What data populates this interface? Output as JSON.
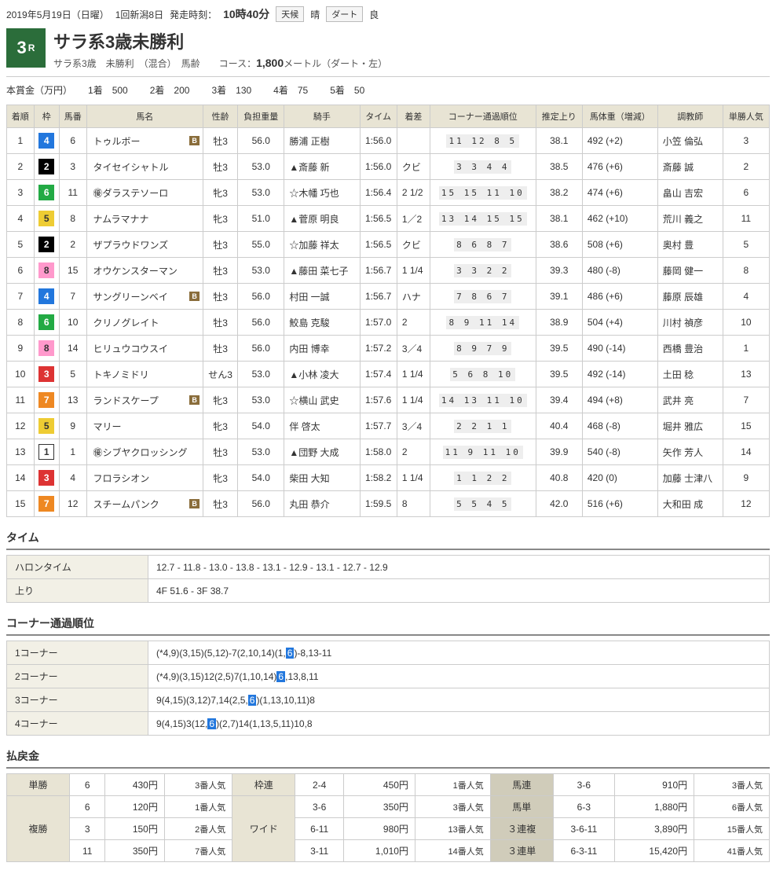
{
  "header": {
    "date": "2019年5月19日（日曜）",
    "meet": "1回新潟8日",
    "post_label": "発走時刻：",
    "post_time": "10時40分",
    "weather_label": "天候",
    "weather": "晴",
    "track_label": "ダート",
    "track": "良"
  },
  "race": {
    "number": "3",
    "number_suffix": "R",
    "title": "サラ系3歳未勝利",
    "sub": "サラ系3歳　未勝利　（混合）　馬齢　　コース：",
    "distance": "1,800",
    "distance_suffix": "メートル（ダート・左）"
  },
  "prize": {
    "label": "本賞金（万円）",
    "items": [
      [
        "1着",
        "500"
      ],
      [
        "2着",
        "200"
      ],
      [
        "3着",
        "130"
      ],
      [
        "4着",
        "75"
      ],
      [
        "5着",
        "50"
      ]
    ]
  },
  "columns": [
    "着順",
    "枠",
    "馬番",
    "馬名",
    "性齢",
    "負担重量",
    "騎手",
    "タイム",
    "着差",
    "コーナー通過順位",
    "推定上り",
    "馬体重（増減）",
    "調教師",
    "単勝人気"
  ],
  "waku_colors": {
    "1": "waku-1",
    "2": "waku-2",
    "3": "waku-3",
    "4": "waku-4",
    "5": "waku-5",
    "6": "waku-6",
    "7": "waku-7",
    "8": "waku-8"
  },
  "rows": [
    {
      "pos": "1",
      "waku": "4",
      "num": "6",
      "name": "トゥルボー",
      "b": true,
      "sex": "牡3",
      "wt": "56.0",
      "jockey": "勝浦 正樹",
      "time": "1:56.0",
      "margin": "",
      "corners": "11 12 8 5",
      "agari": "38.1",
      "body": "492 (+2)",
      "trainer": "小笠 倫弘",
      "pop": "3"
    },
    {
      "pos": "2",
      "waku": "2",
      "num": "3",
      "name": "タイセイシャトル",
      "b": false,
      "sex": "牡3",
      "wt": "53.0",
      "jockey": "▲斎藤 新",
      "time": "1:56.0",
      "margin": "クビ",
      "corners": "3 3 4 4",
      "agari": "38.5",
      "body": "476 (+6)",
      "trainer": "斎藤 誠",
      "pop": "2"
    },
    {
      "pos": "3",
      "waku": "6",
      "num": "11",
      "name": "㊝ダラステソーロ",
      "b": false,
      "sex": "牝3",
      "wt": "53.0",
      "jockey": "☆木幡 巧也",
      "time": "1:56.4",
      "margin": "2 1/2",
      "corners": "15 15 11 10",
      "agari": "38.2",
      "body": "474 (+6)",
      "trainer": "畠山 吉宏",
      "pop": "6"
    },
    {
      "pos": "4",
      "waku": "5",
      "num": "8",
      "name": "ナムラマナナ",
      "b": false,
      "sex": "牝3",
      "wt": "51.0",
      "jockey": "▲菅原 明良",
      "time": "1:56.5",
      "margin": "1／2",
      "corners": "13 14 15 15",
      "agari": "38.1",
      "body": "462 (+10)",
      "trainer": "荒川 義之",
      "pop": "11"
    },
    {
      "pos": "5",
      "waku": "2",
      "num": "2",
      "name": "ザプラウドワンズ",
      "b": false,
      "sex": "牡3",
      "wt": "55.0",
      "jockey": "☆加藤 祥太",
      "time": "1:56.5",
      "margin": "クビ",
      "corners": "8 6 8 7",
      "agari": "38.6",
      "body": "508 (+6)",
      "trainer": "奥村 豊",
      "pop": "5"
    },
    {
      "pos": "6",
      "waku": "8",
      "num": "15",
      "name": "オウケンスターマン",
      "b": false,
      "sex": "牡3",
      "wt": "53.0",
      "jockey": "▲藤田 菜七子",
      "time": "1:56.7",
      "margin": "1 1/4",
      "corners": "3 3 2 2",
      "agari": "39.3",
      "body": "480 (-8)",
      "trainer": "藤岡 健一",
      "pop": "8"
    },
    {
      "pos": "7",
      "waku": "4",
      "num": "7",
      "name": "サングリーンベイ",
      "b": true,
      "sex": "牡3",
      "wt": "56.0",
      "jockey": "村田 一誠",
      "time": "1:56.7",
      "margin": "ハナ",
      "corners": "7 8 6 7",
      "agari": "39.1",
      "body": "486 (+6)",
      "trainer": "藤原 辰雄",
      "pop": "4"
    },
    {
      "pos": "8",
      "waku": "6",
      "num": "10",
      "name": "クリノグレイト",
      "b": false,
      "sex": "牡3",
      "wt": "56.0",
      "jockey": "鮫島 克駿",
      "time": "1:57.0",
      "margin": "2",
      "corners": "8 9 11 14",
      "agari": "38.9",
      "body": "504 (+4)",
      "trainer": "川村 禎彦",
      "pop": "10"
    },
    {
      "pos": "9",
      "waku": "8",
      "num": "14",
      "name": "ヒリュウコウスイ",
      "b": false,
      "sex": "牡3",
      "wt": "56.0",
      "jockey": "内田 博幸",
      "time": "1:57.2",
      "margin": "3／4",
      "corners": "8 9 7 9",
      "agari": "39.5",
      "body": "490 (-14)",
      "trainer": "西橋 豊治",
      "pop": "1"
    },
    {
      "pos": "10",
      "waku": "3",
      "num": "5",
      "name": "トキノミドリ",
      "b": false,
      "sex": "せん3",
      "wt": "53.0",
      "jockey": "▲小林 凌大",
      "time": "1:57.4",
      "margin": "1 1/4",
      "corners": "5 6 8 10",
      "agari": "39.5",
      "body": "492 (-14)",
      "trainer": "土田 稔",
      "pop": "13"
    },
    {
      "pos": "11",
      "waku": "7",
      "num": "13",
      "name": "ランドスケープ",
      "b": true,
      "sex": "牝3",
      "wt": "53.0",
      "jockey": "☆横山 武史",
      "time": "1:57.6",
      "margin": "1 1/4",
      "corners": "14 13 11 10",
      "agari": "39.4",
      "body": "494 (+8)",
      "trainer": "武井 亮",
      "pop": "7"
    },
    {
      "pos": "12",
      "waku": "5",
      "num": "9",
      "name": "マリー",
      "b": false,
      "sex": "牝3",
      "wt": "54.0",
      "jockey": "伴 啓太",
      "time": "1:57.7",
      "margin": "3／4",
      "corners": "2 2 1 1",
      "agari": "40.4",
      "body": "468 (-8)",
      "trainer": "堀井 雅広",
      "pop": "15"
    },
    {
      "pos": "13",
      "waku": "1",
      "num": "1",
      "name": "㊝シブヤクロッシング",
      "b": false,
      "sex": "牡3",
      "wt": "53.0",
      "jockey": "▲団野 大成",
      "time": "1:58.0",
      "margin": "2",
      "corners": "11 9 11 10",
      "agari": "39.9",
      "body": "540 (-8)",
      "trainer": "矢作 芳人",
      "pop": "14"
    },
    {
      "pos": "14",
      "waku": "3",
      "num": "4",
      "name": "フロラシオン",
      "b": false,
      "sex": "牝3",
      "wt": "54.0",
      "jockey": "柴田 大知",
      "time": "1:58.2",
      "margin": "1 1/4",
      "corners": "1 1 2 2",
      "agari": "40.8",
      "body": "420 (0)",
      "trainer": "加藤 士津八",
      "pop": "9"
    },
    {
      "pos": "15",
      "waku": "7",
      "num": "12",
      "name": "スチームパンク",
      "b": true,
      "sex": "牡3",
      "wt": "56.0",
      "jockey": "丸田 恭介",
      "time": "1:59.5",
      "margin": "8",
      "corners": "5 5 4 5",
      "agari": "42.0",
      "body": "516 (+6)",
      "trainer": "大和田 成",
      "pop": "12"
    }
  ],
  "time_section": {
    "title": "タイム",
    "rows": [
      [
        "ハロンタイム",
        "12.7 - 11.8 - 13.0 - 13.8 - 13.1 - 12.9 - 13.1 - 12.7 - 12.9"
      ],
      [
        "上り",
        "4F 51.6 - 3F 38.7"
      ]
    ]
  },
  "corner_section": {
    "title": "コーナー通過順位",
    "rows": [
      [
        "1コーナー",
        "(*4,9)(3,15)(5,12)-7(2,10,14)(1,<6>)-8,13-11"
      ],
      [
        "2コーナー",
        "(*4,9)(3,15)12(2,5)7(1,10,14)<6>,13,8,11"
      ],
      [
        "3コーナー",
        "9(4,15)(3,12)7,14(2,5,<6>)(1,13,10,11)8"
      ],
      [
        "4コーナー",
        "9(4,15)3(12,<6>)(2,7)14(1,13,5,11)10,8"
      ]
    ]
  },
  "payout": {
    "title": "払戻金",
    "groups": [
      {
        "type": "単勝",
        "rows": [
          [
            "6",
            "430円",
            "3番人気"
          ]
        ]
      },
      {
        "type": "複勝",
        "rows": [
          [
            "6",
            "120円",
            "1番人気"
          ],
          [
            "3",
            "150円",
            "2番人気"
          ],
          [
            "11",
            "350円",
            "7番人気"
          ]
        ]
      },
      {
        "type": "枠連",
        "rows": [
          [
            "2-4",
            "450円",
            "1番人気"
          ]
        ]
      },
      {
        "type": "ワイド",
        "rows": [
          [
            "3-6",
            "350円",
            "3番人気"
          ],
          [
            "6-11",
            "980円",
            "13番人気"
          ],
          [
            "3-11",
            "1,010円",
            "14番人気"
          ]
        ]
      },
      {
        "type": "馬連",
        "dark": true,
        "rows": [
          [
            "3-6",
            "910円",
            "3番人気"
          ]
        ]
      },
      {
        "type": "馬単",
        "dark": true,
        "rows": [
          [
            "6-3",
            "1,880円",
            "6番人気"
          ]
        ]
      },
      {
        "type": "３連複",
        "dark": true,
        "rows": [
          [
            "3-6-11",
            "3,890円",
            "15番人気"
          ]
        ]
      },
      {
        "type": "３連単",
        "dark": true,
        "rows": [
          [
            "6-3-11",
            "15,420円",
            "41番人気"
          ]
        ]
      }
    ]
  }
}
